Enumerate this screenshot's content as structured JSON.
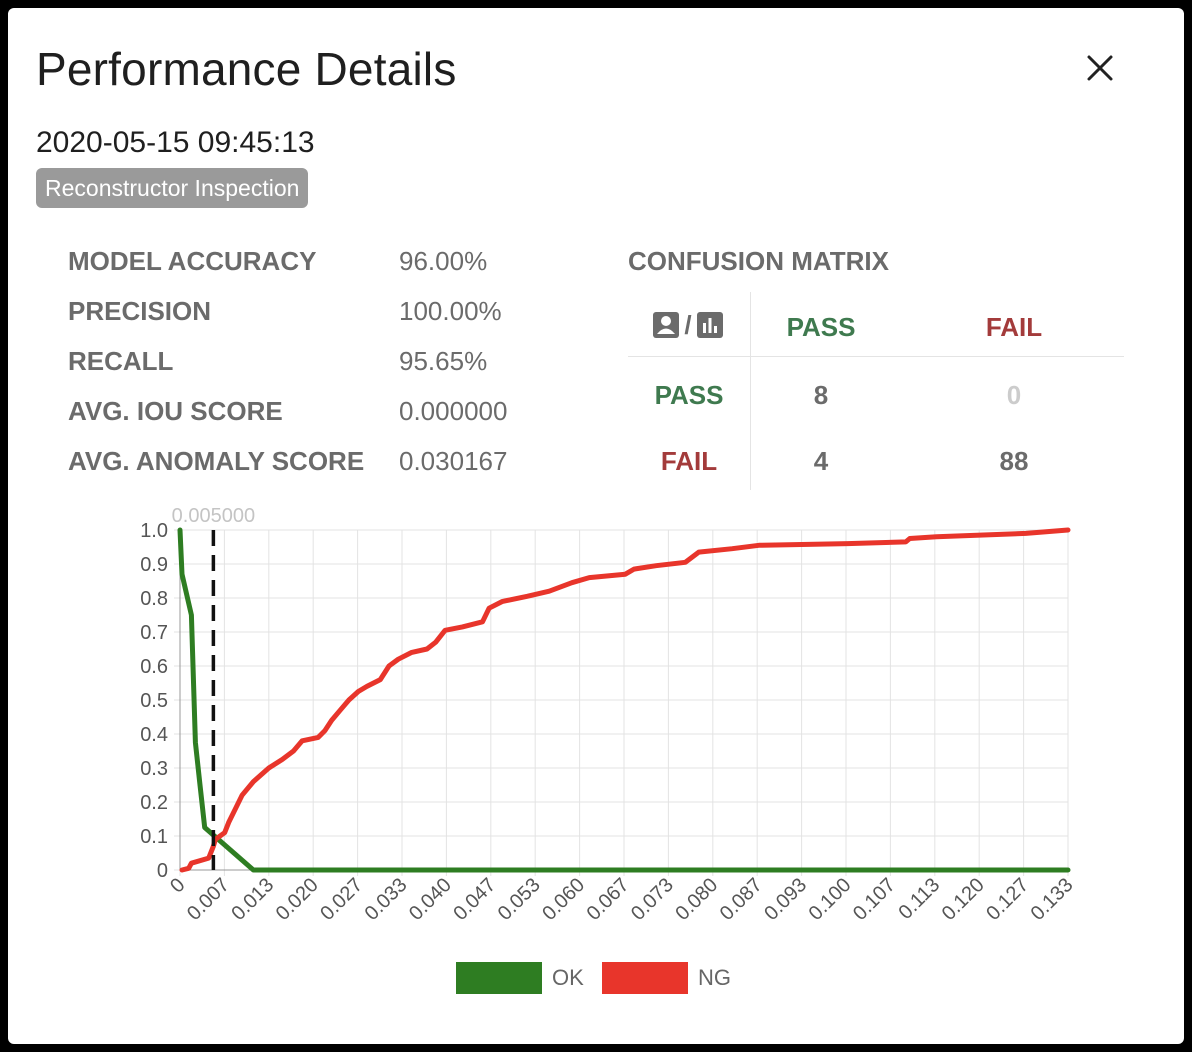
{
  "dialog": {
    "title": "Performance Details",
    "close_icon": "close-icon",
    "timestamp": "2020-05-15 09:45:13",
    "badge": "Reconstructor Inspection"
  },
  "metrics": [
    {
      "label": "MODEL ACCURACY",
      "value": "96.00%"
    },
    {
      "label": "PRECISION",
      "value": "100.00%"
    },
    {
      "label": "RECALL",
      "value": "95.65%"
    },
    {
      "label": "AVG. IOU SCORE",
      "value": "0.000000"
    },
    {
      "label": "AVG. ANOMALY SCORE",
      "value": "0.030167"
    }
  ],
  "confusion_matrix": {
    "title": "CONFUSION MATRIX",
    "header_icons": [
      "user-icon",
      "bar-chart-icon"
    ],
    "header_separator": "/",
    "columns": [
      "PASS",
      "FAIL"
    ],
    "rows": [
      {
        "label": "PASS",
        "values": [
          "8",
          "0"
        ]
      },
      {
        "label": "FAIL",
        "values": [
          "4",
          "88"
        ]
      }
    ],
    "colors": {
      "pass": "#3f7a4f",
      "fail": "#a33b3b"
    }
  },
  "chart_data": {
    "type": "line",
    "threshold_label": "0.005000",
    "threshold": 0.005,
    "xlim": [
      0,
      0.133
    ],
    "ylim": [
      0,
      1.0
    ],
    "x_ticks": [
      "0",
      "0.007",
      "0.013",
      "0.020",
      "0.027",
      "0.033",
      "0.040",
      "0.047",
      "0.053",
      "0.060",
      "0.067",
      "0.073",
      "0.080",
      "0.087",
      "0.093",
      "0.100",
      "0.107",
      "0.113",
      "0.120",
      "0.127",
      "0.133"
    ],
    "y_ticks": [
      "0",
      "0.1",
      "0.2",
      "0.3",
      "0.4",
      "0.5",
      "0.6",
      "0.7",
      "0.8",
      "0.9",
      "1.0"
    ],
    "grid": true,
    "legend_position": "bottom",
    "series": [
      {
        "name": "OK",
        "color": "#2e7d22",
        "points": [
          [
            0,
            1.0
          ],
          [
            0.0003,
            0.87
          ],
          [
            0.0017,
            0.75
          ],
          [
            0.0023,
            0.375
          ],
          [
            0.003,
            0.25
          ],
          [
            0.0037,
            0.125
          ],
          [
            0.011,
            0.0
          ],
          [
            0.133,
            0.0
          ]
        ]
      },
      {
        "name": "NG",
        "color": "#e8352b",
        "points": [
          [
            0.0003,
            0.0
          ],
          [
            0.0013,
            0.005
          ],
          [
            0.0017,
            0.02
          ],
          [
            0.0043,
            0.035
          ],
          [
            0.005,
            0.07
          ],
          [
            0.0053,
            0.09
          ],
          [
            0.0067,
            0.11
          ],
          [
            0.0073,
            0.14
          ],
          [
            0.0083,
            0.18
          ],
          [
            0.0093,
            0.22
          ],
          [
            0.011,
            0.26
          ],
          [
            0.0133,
            0.3
          ],
          [
            0.0153,
            0.325
          ],
          [
            0.017,
            0.35
          ],
          [
            0.0183,
            0.38
          ],
          [
            0.0207,
            0.39
          ],
          [
            0.0217,
            0.41
          ],
          [
            0.0227,
            0.44
          ],
          [
            0.024,
            0.47
          ],
          [
            0.0253,
            0.5
          ],
          [
            0.0267,
            0.525
          ],
          [
            0.028,
            0.54
          ],
          [
            0.03,
            0.56
          ],
          [
            0.0313,
            0.6
          ],
          [
            0.0327,
            0.62
          ],
          [
            0.0347,
            0.64
          ],
          [
            0.037,
            0.65
          ],
          [
            0.0383,
            0.67
          ],
          [
            0.0397,
            0.705
          ],
          [
            0.0423,
            0.715
          ],
          [
            0.0453,
            0.73
          ],
          [
            0.0463,
            0.77
          ],
          [
            0.0483,
            0.79
          ],
          [
            0.052,
            0.805
          ],
          [
            0.0553,
            0.82
          ],
          [
            0.0587,
            0.845
          ],
          [
            0.0613,
            0.86
          ],
          [
            0.0667,
            0.87
          ],
          [
            0.068,
            0.885
          ],
          [
            0.0713,
            0.895
          ],
          [
            0.0757,
            0.905
          ],
          [
            0.0777,
            0.935
          ],
          [
            0.0827,
            0.945
          ],
          [
            0.0867,
            0.955
          ],
          [
            0.1,
            0.96
          ],
          [
            0.1087,
            0.965
          ],
          [
            0.1093,
            0.975
          ],
          [
            0.1133,
            0.98
          ],
          [
            0.1267,
            0.99
          ],
          [
            0.133,
            1.0
          ]
        ]
      }
    ]
  }
}
